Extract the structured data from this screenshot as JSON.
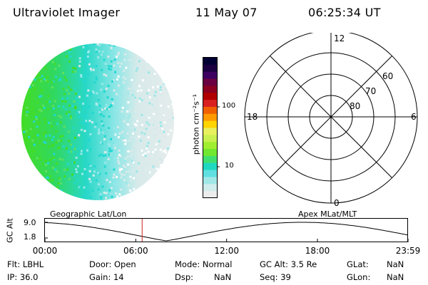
{
  "header": {
    "instrument": "Ultraviolet Imager",
    "date": "11 May 07",
    "time": "06:25:34 UT"
  },
  "colorbar": {
    "unit_label": "photon cm⁻²s⁻¹",
    "ticks": [
      "100",
      "10"
    ],
    "scale": "log",
    "colors": [
      "#000033",
      "#1a0040",
      "#3d0060",
      "#6a0040",
      "#8b0020",
      "#b00000",
      "#d82020",
      "#f06000",
      "#ff9a00",
      "#ffd400",
      "#e8f060",
      "#c8f050",
      "#a0ee30",
      "#70e830",
      "#40e070",
      "#20d8c0",
      "#60e0e0",
      "#a0e8e8",
      "#d0ecec",
      "#ececec"
    ]
  },
  "polar_grid": {
    "mlt_labels": {
      "top": "12",
      "left": "18",
      "right": "6",
      "bottom": "0"
    },
    "lat_labels": [
      "60",
      "70",
      "80"
    ]
  },
  "timeline": {
    "y_axis_label": "GC Alt",
    "y_ticks": [
      "9.0",
      "1.8"
    ],
    "left_label": "Geographic Lat/Lon",
    "right_label": "Apex  MLat/MLT",
    "x_ticks": [
      "00:00",
      "06:00",
      "12:00",
      "18:00",
      "23:59"
    ],
    "current_time_marker_hours": 6.42
  },
  "info": {
    "flt": "Flt: LBHL",
    "ip": "IP: 36.0",
    "door": "Door: Open",
    "gain": "Gain: 14",
    "mode": "Mode: Normal",
    "dsp_label": "Dsp:",
    "dsp_value": "NaN",
    "gcalt": "GC Alt: 3.5 Re",
    "seq": "Seq: 39",
    "glat_label": "GLat:",
    "glat_value": "NaN",
    "glon_label": "GLon:",
    "glon_value": "NaN"
  },
  "colors": {
    "marker": "#cc2222",
    "green": "#44dd22",
    "cyan": "#22d8d0",
    "pale": "#d8eaea"
  }
}
